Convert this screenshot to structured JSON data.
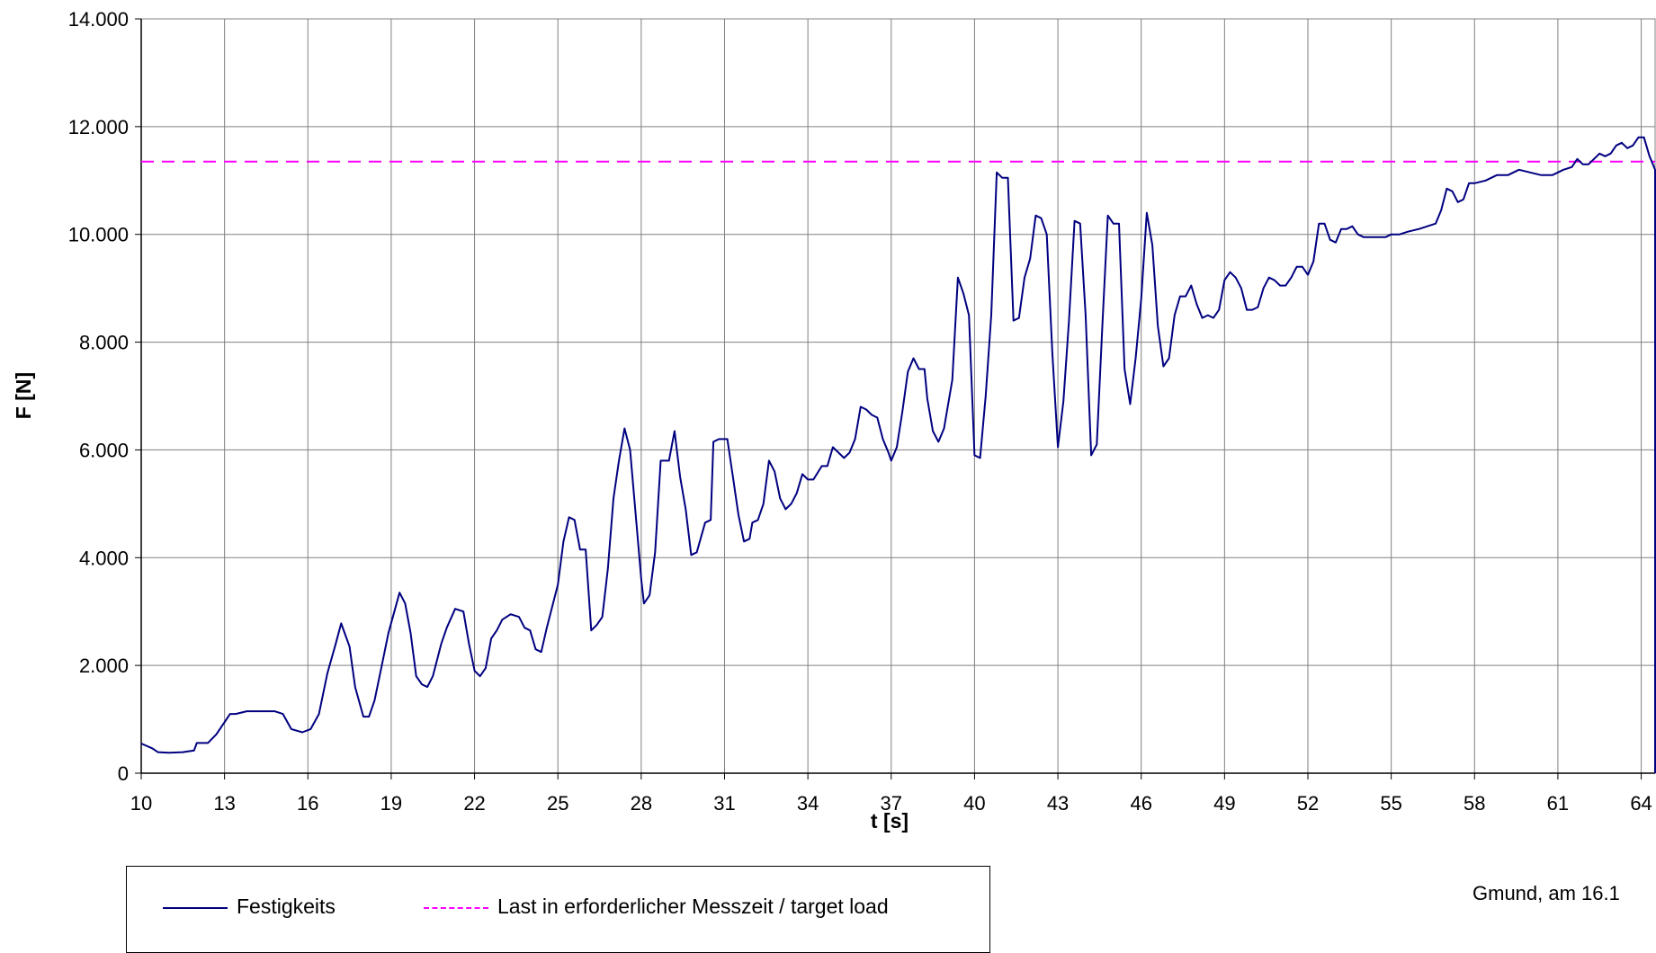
{
  "chart_data": {
    "type": "line",
    "xlabel": "t [s]",
    "ylabel": "F [N]",
    "xlim": [
      10,
      64.5
    ],
    "ylim": [
      0,
      14000
    ],
    "x_ticks": [
      "10",
      "13",
      "16",
      "19",
      "22",
      "25",
      "28",
      "31",
      "34",
      "37",
      "40",
      "43",
      "46",
      "49",
      "52",
      "55",
      "58",
      "61",
      "64"
    ],
    "y_ticks": [
      "0",
      "2.000",
      "4.000",
      "6.000",
      "8.000",
      "10.000",
      "12.000",
      "14.000"
    ],
    "grid": true,
    "legend_position": "bottom-left",
    "series": [
      {
        "name": "Festigkeits",
        "color": "#000080",
        "style": "solid",
        "points": [
          [
            10.0,
            550
          ],
          [
            10.4,
            460
          ],
          [
            10.6,
            390
          ],
          [
            11.0,
            380
          ],
          [
            11.5,
            390
          ],
          [
            11.9,
            420
          ],
          [
            12.0,
            560
          ],
          [
            12.4,
            560
          ],
          [
            12.7,
            720
          ],
          [
            13.2,
            1100
          ],
          [
            13.4,
            1100
          ],
          [
            13.8,
            1150
          ],
          [
            14.2,
            1150
          ],
          [
            14.8,
            1150
          ],
          [
            15.1,
            1100
          ],
          [
            15.4,
            820
          ],
          [
            15.8,
            760
          ],
          [
            16.1,
            820
          ],
          [
            16.4,
            1100
          ],
          [
            16.7,
            1850
          ],
          [
            17.0,
            2400
          ],
          [
            17.2,
            2780
          ],
          [
            17.5,
            2350
          ],
          [
            17.7,
            1600
          ],
          [
            18.0,
            1050
          ],
          [
            18.2,
            1050
          ],
          [
            18.4,
            1350
          ],
          [
            18.7,
            2100
          ],
          [
            18.9,
            2600
          ],
          [
            19.3,
            3350
          ],
          [
            19.5,
            3150
          ],
          [
            19.7,
            2600
          ],
          [
            19.9,
            1800
          ],
          [
            20.1,
            1650
          ],
          [
            20.3,
            1600
          ],
          [
            20.5,
            1800
          ],
          [
            20.8,
            2400
          ],
          [
            21.0,
            2700
          ],
          [
            21.3,
            3050
          ],
          [
            21.6,
            3000
          ],
          [
            21.8,
            2400
          ],
          [
            22.0,
            1900
          ],
          [
            22.2,
            1800
          ],
          [
            22.4,
            1950
          ],
          [
            22.6,
            2500
          ],
          [
            22.8,
            2650
          ],
          [
            23.0,
            2850
          ],
          [
            23.3,
            2950
          ],
          [
            23.6,
            2900
          ],
          [
            23.8,
            2700
          ],
          [
            24.0,
            2650
          ],
          [
            24.2,
            2300
          ],
          [
            24.4,
            2250
          ],
          [
            24.6,
            2700
          ],
          [
            25.0,
            3500
          ],
          [
            25.2,
            4300
          ],
          [
            25.4,
            4750
          ],
          [
            25.6,
            4700
          ],
          [
            25.8,
            4150
          ],
          [
            26.0,
            4150
          ],
          [
            26.2,
            2650
          ],
          [
            26.4,
            2750
          ],
          [
            26.6,
            2900
          ],
          [
            26.8,
            3800
          ],
          [
            27.0,
            5100
          ],
          [
            27.2,
            5800
          ],
          [
            27.4,
            6400
          ],
          [
            27.6,
            6000
          ],
          [
            27.8,
            4800
          ],
          [
            28.0,
            3600
          ],
          [
            28.1,
            3150
          ],
          [
            28.3,
            3300
          ],
          [
            28.5,
            4100
          ],
          [
            28.7,
            5800
          ],
          [
            29.0,
            5800
          ],
          [
            29.2,
            6350
          ],
          [
            29.4,
            5500
          ],
          [
            29.6,
            4900
          ],
          [
            29.8,
            4050
          ],
          [
            30.0,
            4100
          ],
          [
            30.3,
            4650
          ],
          [
            30.5,
            4700
          ],
          [
            30.6,
            6150
          ],
          [
            30.8,
            6200
          ],
          [
            31.1,
            6200
          ],
          [
            31.3,
            5500
          ],
          [
            31.5,
            4800
          ],
          [
            31.7,
            4300
          ],
          [
            31.9,
            4350
          ],
          [
            32.0,
            4650
          ],
          [
            32.2,
            4700
          ],
          [
            32.4,
            5000
          ],
          [
            32.6,
            5800
          ],
          [
            32.8,
            5600
          ],
          [
            33.0,
            5100
          ],
          [
            33.2,
            4900
          ],
          [
            33.4,
            5000
          ],
          [
            33.6,
            5200
          ],
          [
            33.8,
            5550
          ],
          [
            34.0,
            5450
          ],
          [
            34.2,
            5450
          ],
          [
            34.5,
            5700
          ],
          [
            34.7,
            5700
          ],
          [
            34.9,
            6050
          ],
          [
            35.1,
            5950
          ],
          [
            35.3,
            5850
          ],
          [
            35.5,
            5950
          ],
          [
            35.7,
            6200
          ],
          [
            35.9,
            6800
          ],
          [
            36.1,
            6750
          ],
          [
            36.3,
            6650
          ],
          [
            36.5,
            6600
          ],
          [
            36.7,
            6200
          ],
          [
            36.9,
            5950
          ],
          [
            37.0,
            5800
          ],
          [
            37.2,
            6050
          ],
          [
            37.4,
            6700
          ],
          [
            37.6,
            7450
          ],
          [
            37.8,
            7700
          ],
          [
            38.0,
            7500
          ],
          [
            38.2,
            7500
          ],
          [
            38.3,
            6950
          ],
          [
            38.5,
            6350
          ],
          [
            38.7,
            6150
          ],
          [
            38.9,
            6400
          ],
          [
            39.2,
            7300
          ],
          [
            39.4,
            9200
          ],
          [
            39.6,
            8900
          ],
          [
            39.8,
            8500
          ],
          [
            40.0,
            5900
          ],
          [
            40.2,
            5850
          ],
          [
            40.4,
            7000
          ],
          [
            40.6,
            8500
          ],
          [
            40.8,
            11150
          ],
          [
            41.0,
            11050
          ],
          [
            41.2,
            11050
          ],
          [
            41.4,
            8400
          ],
          [
            41.6,
            8450
          ],
          [
            41.8,
            9200
          ],
          [
            42.0,
            9550
          ],
          [
            42.2,
            10350
          ],
          [
            42.4,
            10300
          ],
          [
            42.6,
            10000
          ],
          [
            42.8,
            7800
          ],
          [
            43.0,
            6050
          ],
          [
            43.2,
            6900
          ],
          [
            43.4,
            8400
          ],
          [
            43.6,
            10250
          ],
          [
            43.8,
            10200
          ],
          [
            44.0,
            8500
          ],
          [
            44.2,
            5900
          ],
          [
            44.4,
            6100
          ],
          [
            44.6,
            8300
          ],
          [
            44.8,
            10350
          ],
          [
            45.0,
            10200
          ],
          [
            45.2,
            10200
          ],
          [
            45.4,
            7500
          ],
          [
            45.6,
            6850
          ],
          [
            45.8,
            7700
          ],
          [
            46.0,
            8800
          ],
          [
            46.2,
            10400
          ],
          [
            46.4,
            9800
          ],
          [
            46.6,
            8300
          ],
          [
            46.8,
            7550
          ],
          [
            47.0,
            7700
          ],
          [
            47.2,
            8500
          ],
          [
            47.4,
            8850
          ],
          [
            47.6,
            8850
          ],
          [
            47.8,
            9050
          ],
          [
            48.0,
            8700
          ],
          [
            48.2,
            8450
          ],
          [
            48.4,
            8500
          ],
          [
            48.6,
            8450
          ],
          [
            48.8,
            8600
          ],
          [
            49.0,
            9150
          ],
          [
            49.2,
            9300
          ],
          [
            49.4,
            9200
          ],
          [
            49.6,
            9000
          ],
          [
            49.8,
            8600
          ],
          [
            50.0,
            8600
          ],
          [
            50.2,
            8650
          ],
          [
            50.4,
            9000
          ],
          [
            50.6,
            9200
          ],
          [
            50.8,
            9150
          ],
          [
            51.0,
            9050
          ],
          [
            51.2,
            9050
          ],
          [
            51.4,
            9200
          ],
          [
            51.6,
            9400
          ],
          [
            51.8,
            9400
          ],
          [
            52.0,
            9250
          ],
          [
            52.2,
            9500
          ],
          [
            52.4,
            10200
          ],
          [
            52.6,
            10200
          ],
          [
            52.8,
            9900
          ],
          [
            53.0,
            9850
          ],
          [
            53.2,
            10100
          ],
          [
            53.4,
            10100
          ],
          [
            53.6,
            10150
          ],
          [
            53.8,
            10000
          ],
          [
            54.0,
            9950
          ],
          [
            54.2,
            9950
          ],
          [
            54.5,
            9950
          ],
          [
            54.8,
            9950
          ],
          [
            55.0,
            10000
          ],
          [
            55.3,
            10000
          ],
          [
            55.6,
            10050
          ],
          [
            56.0,
            10100
          ],
          [
            56.3,
            10150
          ],
          [
            56.6,
            10200
          ],
          [
            56.8,
            10450
          ],
          [
            57.0,
            10850
          ],
          [
            57.2,
            10800
          ],
          [
            57.4,
            10600
          ],
          [
            57.6,
            10650
          ],
          [
            57.8,
            10950
          ],
          [
            58.0,
            10950
          ],
          [
            58.4,
            11000
          ],
          [
            58.8,
            11100
          ],
          [
            59.2,
            11100
          ],
          [
            59.6,
            11200
          ],
          [
            60.0,
            11150
          ],
          [
            60.4,
            11100
          ],
          [
            60.8,
            11100
          ],
          [
            61.2,
            11200
          ],
          [
            61.5,
            11250
          ],
          [
            61.7,
            11400
          ],
          [
            61.9,
            11300
          ],
          [
            62.1,
            11300
          ],
          [
            62.3,
            11400
          ],
          [
            62.5,
            11500
          ],
          [
            62.7,
            11450
          ],
          [
            62.9,
            11500
          ],
          [
            63.1,
            11650
          ],
          [
            63.3,
            11700
          ],
          [
            63.5,
            11600
          ],
          [
            63.7,
            11650
          ],
          [
            63.9,
            11800
          ],
          [
            64.1,
            11800
          ],
          [
            64.3,
            11450
          ],
          [
            64.5,
            11200
          ],
          [
            64.7,
            10050
          ],
          [
            64.9,
            0
          ],
          [
            65.3,
            0
          ]
        ]
      },
      {
        "name": "Last in erforderlicher Messzeit / target load",
        "color": "#FF00FF",
        "style": "dashed",
        "value": 11350
      }
    ],
    "annotation": "Gmund, am 16.1"
  }
}
